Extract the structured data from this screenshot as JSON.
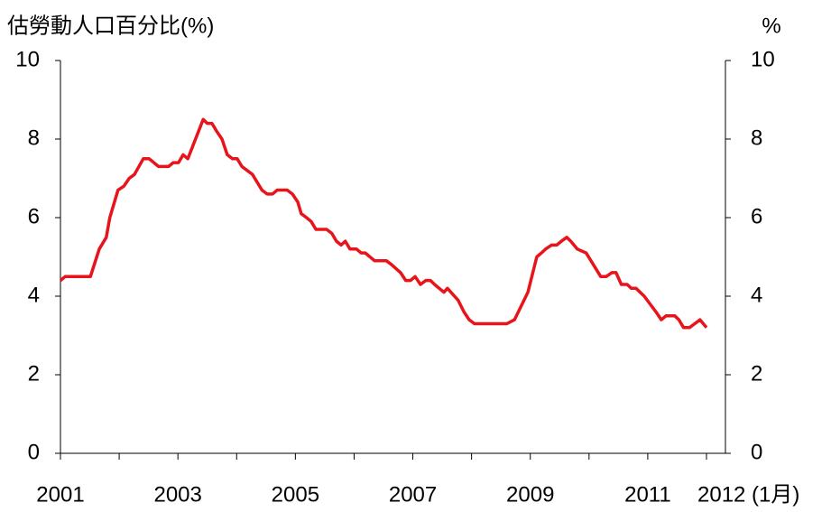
{
  "chart_data": {
    "type": "line",
    "y_label": "估勞動人口百分比(%)",
    "y2_label": "%",
    "x": [
      2001.0,
      2001.08,
      2001.51,
      2001.66,
      2001.78,
      2001.84,
      2001.98,
      2002.08,
      2002.17,
      2002.26,
      2002.41,
      2002.51,
      2002.67,
      2002.84,
      2002.92,
      2003.01,
      2003.09,
      2003.17,
      2003.43,
      2003.5,
      2003.58,
      2003.66,
      2003.75,
      2003.84,
      2003.93,
      2004.01,
      2004.09,
      2004.27,
      2004.43,
      2004.52,
      2004.61,
      2004.69,
      2004.86,
      2004.95,
      2005.04,
      2005.1,
      2005.19,
      2005.27,
      2005.35,
      2005.53,
      2005.62,
      2005.7,
      2005.78,
      2005.85,
      2005.93,
      2006.04,
      2006.12,
      2006.19,
      2006.35,
      2006.55,
      2006.64,
      2006.79,
      2006.88,
      2006.96,
      2007.04,
      2007.13,
      2007.22,
      2007.3,
      2007.37,
      2007.45,
      2007.53,
      2007.59,
      2007.77,
      2007.87,
      2007.96,
      2008.05,
      2008.6,
      2008.73,
      2008.96,
      2009.11,
      2009.19,
      2009.26,
      2009.36,
      2009.45,
      2009.53,
      2009.62,
      2009.69,
      2009.8,
      2009.95,
      2010.2,
      2010.29,
      2010.39,
      2010.46,
      2010.55,
      2010.65,
      2010.72,
      2010.8,
      2010.94,
      2011.14,
      2011.23,
      2011.31,
      2011.46,
      2011.53,
      2011.61,
      2011.71,
      2011.8,
      2011.89,
      2012.0
    ],
    "series": [
      {
        "color": "#e8141b",
        "values": [
          4.4,
          4.5,
          4.5,
          5.2,
          5.5,
          6.0,
          6.7,
          6.8,
          7.0,
          7.1,
          7.5,
          7.5,
          7.3,
          7.3,
          7.4,
          7.4,
          7.6,
          7.5,
          8.5,
          8.4,
          8.4,
          8.2,
          8.0,
          7.6,
          7.5,
          7.5,
          7.3,
          7.1,
          6.7,
          6.6,
          6.6,
          6.7,
          6.7,
          6.6,
          6.4,
          6.1,
          6.0,
          5.9,
          5.7,
          5.7,
          5.6,
          5.4,
          5.3,
          5.4,
          5.2,
          5.2,
          5.1,
          5.1,
          4.9,
          4.9,
          4.8,
          4.6,
          4.4,
          4.4,
          4.5,
          4.3,
          4.4,
          4.4,
          4.3,
          4.2,
          4.1,
          4.2,
          3.9,
          3.6,
          3.4,
          3.3,
          3.3,
          3.4,
          4.1,
          5.0,
          5.1,
          5.2,
          5.3,
          5.3,
          5.4,
          5.5,
          5.4,
          5.2,
          5.1,
          4.5,
          4.5,
          4.6,
          4.6,
          4.3,
          4.3,
          4.2,
          4.2,
          4.0,
          3.6,
          3.4,
          3.5,
          3.5,
          3.4,
          3.2,
          3.2,
          3.3,
          3.4,
          3.2
        ]
      }
    ],
    "xlim": [
      2001,
      2012
    ],
    "xticks": [
      2001,
      {
        "value": 2002,
        "label": null
      },
      2003,
      {
        "value": 2004,
        "label": null
      },
      2005,
      {
        "value": 2006,
        "label": null
      },
      2007,
      {
        "value": 2008,
        "label": null
      },
      2009,
      {
        "value": 2010,
        "label": null
      },
      2011,
      {
        "value": 2012,
        "label": "2012 (1月)"
      }
    ],
    "ylim": [
      0,
      10
    ],
    "yticks": [
      0,
      2,
      4,
      6,
      8,
      10
    ],
    "y2lim": [
      0,
      10
    ],
    "y2ticks": [
      0,
      2,
      4,
      6,
      8,
      10
    ]
  }
}
